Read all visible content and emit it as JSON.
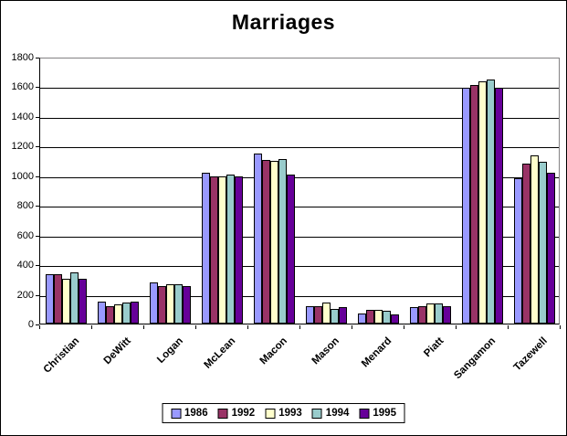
{
  "chart_data": {
    "type": "bar",
    "title": "Marriages",
    "categories": [
      "Christian",
      "DeWitt",
      "Logan",
      "McLean",
      "Macon",
      "Mason",
      "Menard",
      "Piatt",
      "Sangamon",
      "Tazewell"
    ],
    "series": [
      {
        "name": "1986",
        "color": "#9999FF",
        "values": [
          335,
          145,
          275,
          1015,
          1145,
          120,
          70,
          110,
          1590,
          980
        ]
      },
      {
        "name": "1992",
        "color": "#993366",
        "values": [
          330,
          120,
          255,
          995,
          1105,
          120,
          90,
          120,
          1610,
          1080
        ]
      },
      {
        "name": "1993",
        "color": "#FFFFCC",
        "values": [
          305,
          130,
          265,
          995,
          1095,
          140,
          95,
          135,
          1635,
          1135
        ]
      },
      {
        "name": "1994",
        "color": "#99CCCC",
        "values": [
          345,
          140,
          265,
          1005,
          1110,
          100,
          85,
          135,
          1645,
          1090
        ]
      },
      {
        "name": "1995",
        "color": "#660099",
        "values": [
          300,
          145,
          255,
          990,
          1005,
          110,
          60,
          120,
          1590,
          1020
        ]
      }
    ],
    "xlabel": "",
    "ylabel": "",
    "ylim": [
      0,
      1800
    ],
    "ytick_step": 200,
    "grid": true,
    "legend_position": "bottom",
    "colors": {
      "background": "#FFFFFF",
      "frame_border": "#000000",
      "axis": "#000000",
      "gridline": "#000000",
      "plot_border": "#848284"
    }
  }
}
